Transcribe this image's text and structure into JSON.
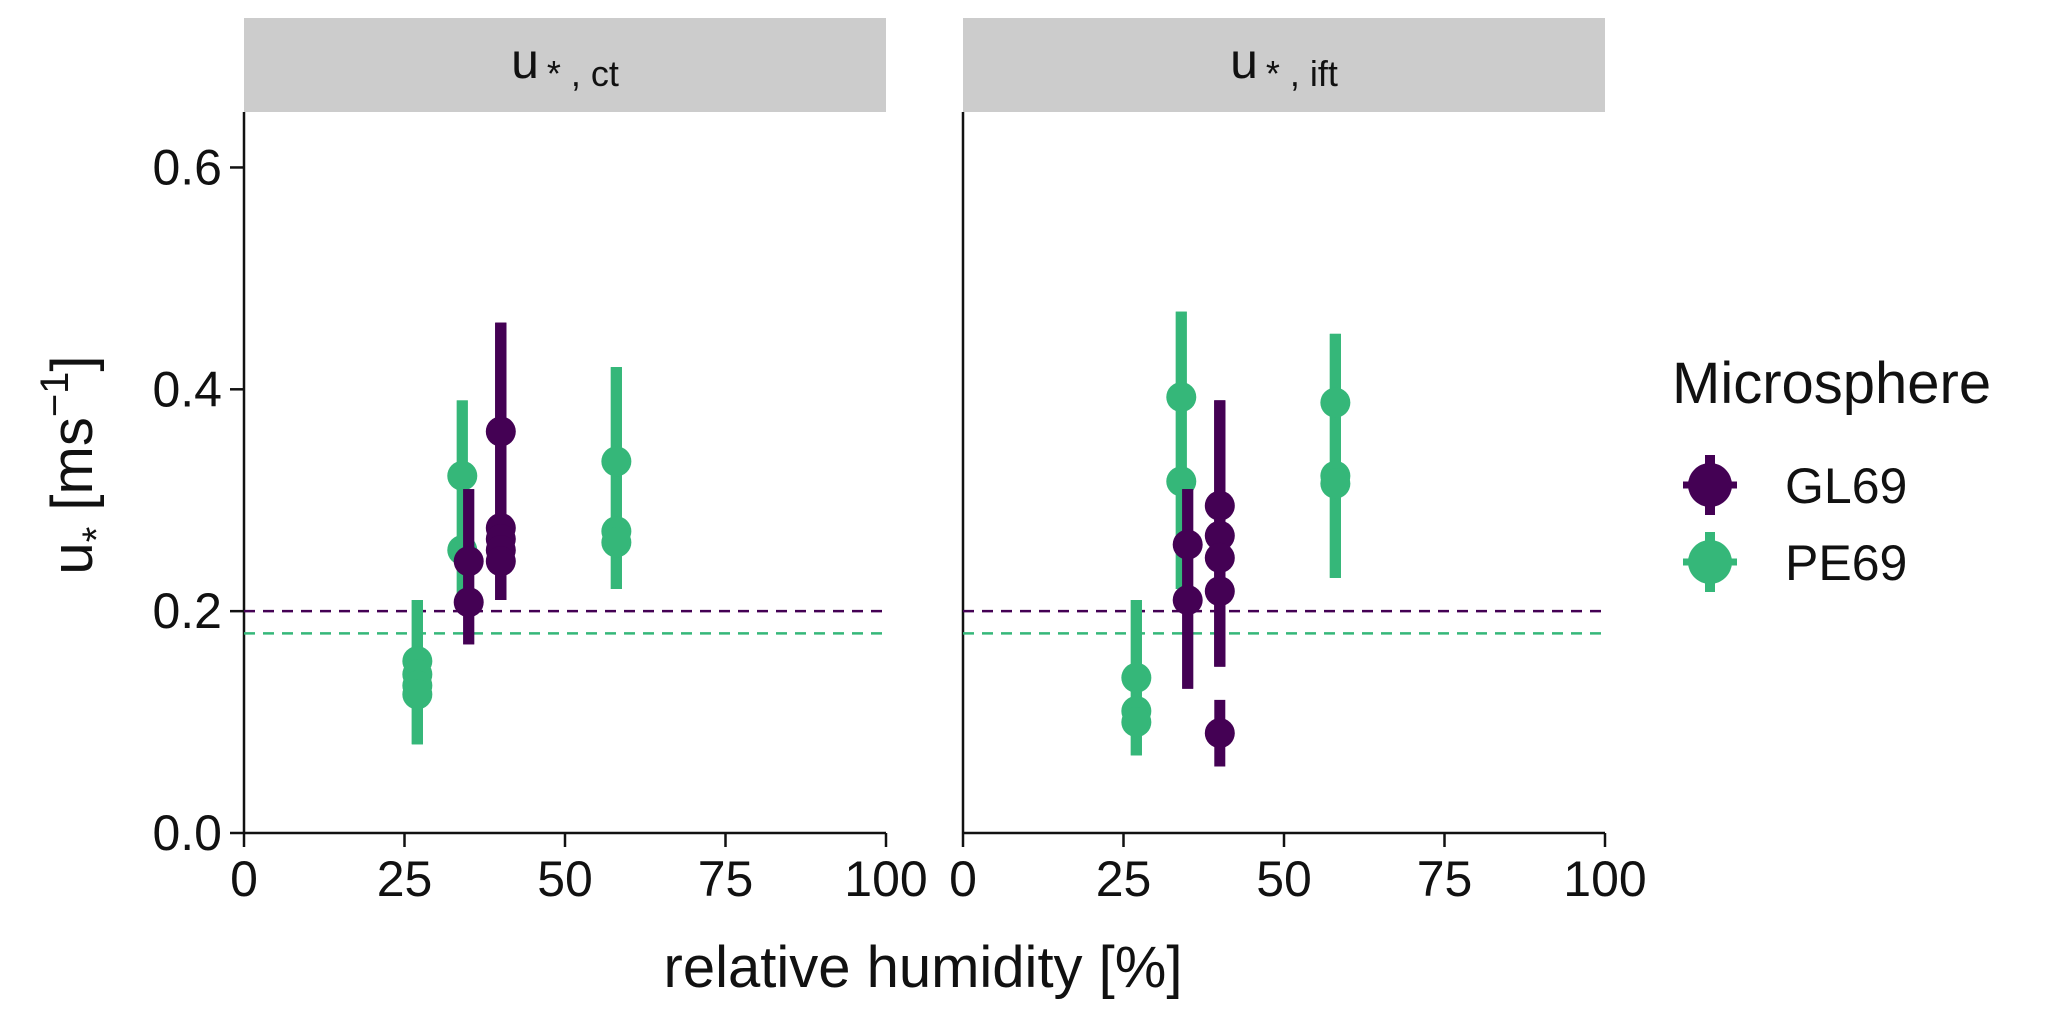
{
  "chart_data": {
    "type": "scatter",
    "xlabel": "relative humidity [%]",
    "ylabel": {
      "main": "u",
      "sub": "*",
      "unit_open": " [ms",
      "unit_sup": "−1",
      "unit_close": "]"
    },
    "xlim": [
      0,
      100
    ],
    "ylim": [
      0,
      0.65
    ],
    "xticks": [
      "0",
      "25",
      "50",
      "75",
      "100"
    ],
    "yticks": [
      "0.0",
      "0.2",
      "0.4",
      "0.6"
    ],
    "legend": {
      "title": "Microsphere",
      "placement": "right",
      "entries": [
        {
          "name": "GL69",
          "color": "#440154"
        },
        {
          "name": "PE69",
          "color": "#35b779"
        }
      ]
    },
    "panels": [
      {
        "strip": {
          "main": "u",
          "sub": "* , ct"
        },
        "thresholds": [
          {
            "series": "GL69",
            "y": 0.2
          },
          {
            "series": "PE69",
            "y": 0.18
          }
        ],
        "series": [
          {
            "name": "PE69",
            "points": [
              {
                "x": 27,
                "y": 0.155,
                "lo": 0.08,
                "hi": 0.21
              },
              {
                "x": 27,
                "y": 0.143,
                "lo": 0.08,
                "hi": 0.21
              },
              {
                "x": 27,
                "y": 0.133,
                "lo": 0.08,
                "hi": 0.21
              },
              {
                "x": 27,
                "y": 0.125,
                "lo": 0.08,
                "hi": 0.21
              },
              {
                "x": 34,
                "y": 0.322,
                "lo": 0.2,
                "hi": 0.39
              },
              {
                "x": 34,
                "y": 0.255,
                "lo": 0.2,
                "hi": 0.39
              },
              {
                "x": 58,
                "y": 0.335,
                "lo": 0.22,
                "hi": 0.42
              },
              {
                "x": 58,
                "y": 0.272,
                "lo": 0.22,
                "hi": 0.42
              },
              {
                "x": 58,
                "y": 0.262,
                "lo": 0.22,
                "hi": 0.42
              }
            ]
          },
          {
            "name": "GL69",
            "points": [
              {
                "x": 35,
                "y": 0.245,
                "lo": 0.17,
                "hi": 0.31
              },
              {
                "x": 35,
                "y": 0.208,
                "lo": 0.17,
                "hi": 0.31
              },
              {
                "x": 40,
                "y": 0.362,
                "lo": 0.21,
                "hi": 0.46
              },
              {
                "x": 40,
                "y": 0.275,
                "lo": 0.21,
                "hi": 0.46
              },
              {
                "x": 40,
                "y": 0.265,
                "lo": 0.21,
                "hi": 0.46
              },
              {
                "x": 40,
                "y": 0.255,
                "lo": 0.21,
                "hi": 0.46
              },
              {
                "x": 40,
                "y": 0.245,
                "lo": 0.21,
                "hi": 0.46
              }
            ]
          }
        ]
      },
      {
        "strip": {
          "main": "u",
          "sub": "* , ift"
        },
        "thresholds": [
          {
            "series": "GL69",
            "y": 0.2
          },
          {
            "series": "PE69",
            "y": 0.18
          }
        ],
        "series": [
          {
            "name": "PE69",
            "points": [
              {
                "x": 27,
                "y": 0.14,
                "lo": 0.07,
                "hi": 0.21
              },
              {
                "x": 27,
                "y": 0.11,
                "lo": 0.07,
                "hi": 0.21
              },
              {
                "x": 27,
                "y": 0.1,
                "lo": 0.07,
                "hi": 0.21
              },
              {
                "x": 34,
                "y": 0.393,
                "lo": 0.22,
                "hi": 0.47
              },
              {
                "x": 34,
                "y": 0.317,
                "lo": 0.22,
                "hi": 0.47
              },
              {
                "x": 58,
                "y": 0.388,
                "lo": 0.23,
                "hi": 0.45
              },
              {
                "x": 58,
                "y": 0.322,
                "lo": 0.23,
                "hi": 0.45
              },
              {
                "x": 58,
                "y": 0.315,
                "lo": 0.23,
                "hi": 0.45
              }
            ]
          },
          {
            "name": "GL69",
            "points": [
              {
                "x": 35,
                "y": 0.26,
                "lo": 0.13,
                "hi": 0.31
              },
              {
                "x": 35,
                "y": 0.21,
                "lo": 0.13,
                "hi": 0.31
              },
              {
                "x": 40,
                "y": 0.295,
                "lo": 0.15,
                "hi": 0.39
              },
              {
                "x": 40,
                "y": 0.268,
                "lo": 0.15,
                "hi": 0.39
              },
              {
                "x": 40,
                "y": 0.248,
                "lo": 0.15,
                "hi": 0.39
              },
              {
                "x": 40,
                "y": 0.218,
                "lo": 0.15,
                "hi": 0.39
              },
              {
                "x": 40,
                "y": 0.09,
                "lo": 0.06,
                "hi": 0.12
              }
            ]
          }
        ]
      }
    ]
  }
}
